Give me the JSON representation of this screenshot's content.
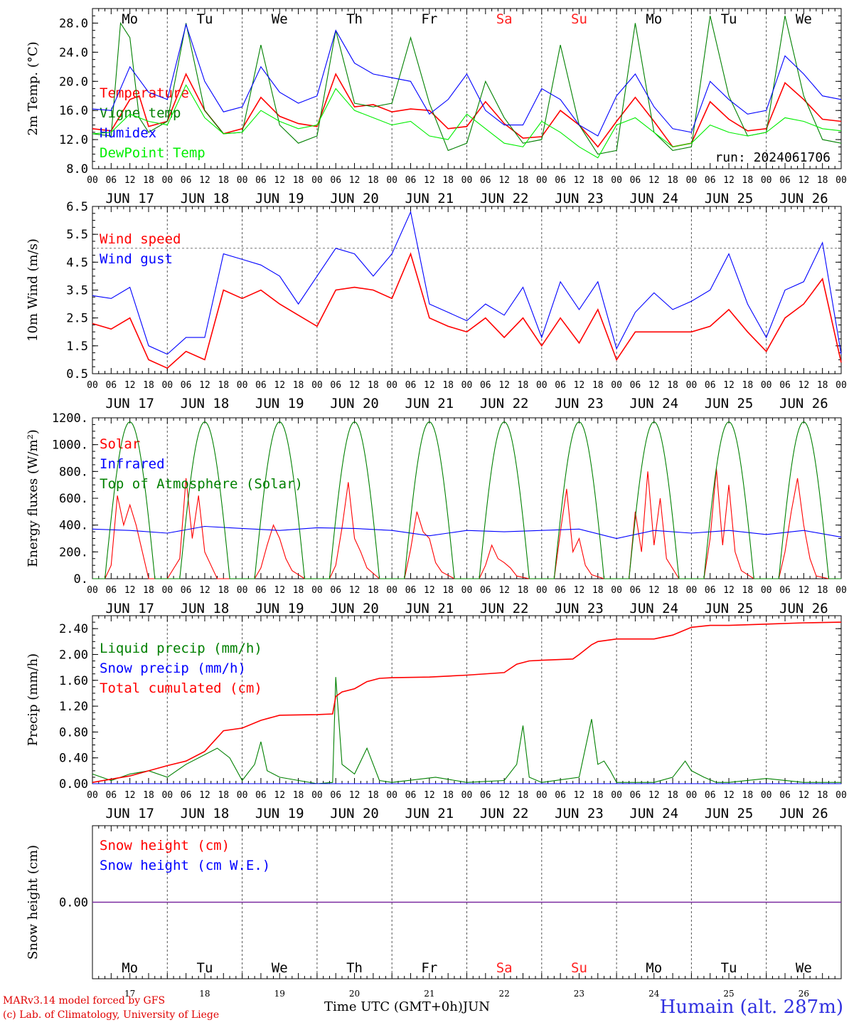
{
  "days": [
    "JUN 17",
    "JUN 18",
    "JUN 19",
    "JUN 20",
    "JUN 21",
    "JUN 22",
    "JUN 23",
    "JUN 24",
    "JUN 25",
    "JUN 26"
  ],
  "hour_ticks": [
    "00",
    "06",
    "12",
    "18"
  ],
  "weekdays": [
    "Mo",
    "Tu",
    "We",
    "Th",
    "Fr",
    "Sa",
    "Su",
    "Mo",
    "Tu",
    "We"
  ],
  "day_numbers": [
    "17",
    "18",
    "19",
    "20",
    "21",
    "22",
    "23",
    "24",
    "25",
    "26"
  ],
  "weekend_color": "#ff2020",
  "footer": {
    "credit_line1": "MARv3.14 model forced by GFS",
    "credit_line2": "(c) Lab. of Climatology, University of Liege",
    "time_axis": "Time UTC (GMT+0h)",
    "month": "JUN",
    "station": "Humain (alt. 287m)"
  },
  "chart_data": [
    {
      "type": "line",
      "ylabel": "2m Temp. (°C)",
      "ylim": [
        8,
        30
      ],
      "yticks": [
        "8.0",
        "12.0",
        "16.0",
        "20.0",
        "24.0",
        "28.0"
      ],
      "annotation": "run: 2024061706",
      "series": [
        {
          "name": "Temperature",
          "color": "#ff0000",
          "x": [
            0,
            6,
            12,
            15,
            18,
            24,
            30,
            36,
            42,
            48,
            54,
            60,
            66,
            72,
            78,
            84,
            90,
            96,
            102,
            108,
            114,
            120,
            126,
            132,
            138,
            144,
            150,
            156,
            162,
            168,
            174,
            180,
            186,
            192,
            198,
            204,
            210,
            216,
            222,
            228,
            234,
            240
          ],
          "y": [
            13.5,
            13.2,
            17.5,
            18.0,
            13.8,
            14.5,
            21.0,
            16.0,
            12.8,
            13.5,
            17.8,
            15.2,
            14.2,
            13.8,
            21.0,
            16.5,
            16.8,
            15.8,
            16.2,
            16.0,
            13.5,
            13.8,
            17.2,
            14.2,
            12.2,
            12.4,
            16.0,
            14.0,
            11.0,
            14.5,
            17.8,
            14.5,
            11.0,
            11.5,
            17.2,
            14.8,
            13.2,
            13.5,
            19.8,
            17.5,
            14.8,
            14.5
          ]
        },
        {
          "name": "Vigne temp",
          "color": "#008000",
          "x": [
            0,
            6,
            9,
            12,
            15,
            18,
            24,
            30,
            36,
            42,
            48,
            54,
            60,
            66,
            72,
            78,
            84,
            90,
            96,
            102,
            108,
            114,
            120,
            126,
            132,
            138,
            144,
            150,
            156,
            162,
            168,
            174,
            180,
            186,
            192,
            198,
            204,
            210,
            216,
            222,
            228,
            234,
            240
          ],
          "y": [
            12.8,
            12.5,
            28.0,
            26.0,
            15.0,
            13.0,
            14.5,
            28.0,
            16.0,
            12.8,
            13.0,
            25.0,
            14.0,
            11.5,
            12.5,
            27.0,
            17.0,
            16.5,
            17.0,
            26.0,
            17.0,
            10.5,
            11.5,
            20.0,
            15.0,
            11.5,
            12.0,
            25.0,
            14.0,
            10.0,
            10.5,
            28.0,
            13.0,
            10.5,
            11.0,
            29.0,
            18.0,
            12.5,
            13.0,
            29.0,
            18.0,
            12.0,
            11.5
          ]
        },
        {
          "name": "Humidex",
          "color": "#0000ff",
          "x": [
            0,
            6,
            12,
            18,
            24,
            30,
            36,
            42,
            48,
            54,
            60,
            66,
            72,
            78,
            84,
            90,
            96,
            102,
            108,
            114,
            120,
            126,
            132,
            138,
            144,
            150,
            156,
            162,
            168,
            174,
            180,
            186,
            192,
            198,
            204,
            210,
            216,
            222,
            228,
            234,
            240
          ],
          "y": [
            16.2,
            16.0,
            22.0,
            18.5,
            17.5,
            27.8,
            20.0,
            15.8,
            16.5,
            22.0,
            18.5,
            17.0,
            18.0,
            27.0,
            22.5,
            21.0,
            20.5,
            20.0,
            15.5,
            17.5,
            21.0,
            16.0,
            14.0,
            14.0,
            19.0,
            17.5,
            14.0,
            12.5,
            18.0,
            21.0,
            16.5,
            13.5,
            13.0,
            20.0,
            17.5,
            15.5,
            16.0,
            23.5,
            21.0,
            18.0,
            17.5
          ]
        },
        {
          "name": "DewPoint Temp",
          "color": "#00ee00",
          "x": [
            0,
            6,
            12,
            18,
            24,
            30,
            36,
            42,
            48,
            54,
            60,
            66,
            72,
            78,
            84,
            90,
            96,
            102,
            108,
            114,
            120,
            126,
            132,
            138,
            144,
            150,
            156,
            162,
            168,
            174,
            180,
            186,
            192,
            198,
            204,
            210,
            216,
            222,
            228,
            234,
            240
          ],
          "y": [
            12.8,
            13.0,
            15.5,
            14.5,
            14.0,
            19.5,
            15.0,
            12.8,
            13.0,
            16.0,
            14.5,
            13.5,
            14.0,
            19.0,
            16.0,
            15.0,
            14.0,
            14.5,
            12.5,
            12.0,
            15.5,
            13.5,
            11.5,
            11.0,
            14.5,
            13.0,
            11.0,
            9.5,
            14.0,
            15.0,
            13.0,
            11.0,
            11.5,
            14.0,
            13.0,
            12.5,
            13.0,
            15.0,
            14.5,
            13.5,
            13.2
          ]
        }
      ]
    },
    {
      "type": "line",
      "ylabel": "10m Wind (m/s)",
      "ylim": [
        0.5,
        6.5
      ],
      "yticks": [
        "0.5",
        "1.5",
        "2.5",
        "3.5",
        "4.5",
        "5.5",
        "6.5"
      ],
      "ref_line": 5.0,
      "series": [
        {
          "name": "Wind speed",
          "color": "#ff0000",
          "x": [
            0,
            6,
            12,
            18,
            24,
            30,
            36,
            42,
            48,
            54,
            60,
            66,
            72,
            78,
            84,
            90,
            96,
            102,
            108,
            114,
            120,
            126,
            132,
            138,
            144,
            150,
            156,
            162,
            168,
            174,
            180,
            186,
            192,
            198,
            204,
            210,
            216,
            222,
            228,
            234,
            240
          ],
          "y": [
            2.3,
            2.1,
            2.5,
            1.0,
            0.7,
            1.3,
            1.0,
            3.5,
            3.2,
            3.5,
            3.0,
            2.6,
            2.2,
            3.5,
            3.6,
            3.5,
            3.2,
            4.8,
            2.5,
            2.2,
            2.0,
            2.5,
            1.8,
            2.5,
            1.5,
            2.5,
            1.6,
            2.8,
            1.0,
            2.0,
            2.0,
            2.0,
            2.0,
            2.2,
            2.8,
            2.0,
            1.3,
            2.5,
            3.0,
            3.9,
            0.9
          ]
        },
        {
          "name": "Wind gust",
          "color": "#0000ff",
          "x": [
            0,
            6,
            12,
            18,
            24,
            30,
            36,
            42,
            48,
            54,
            60,
            66,
            72,
            78,
            84,
            90,
            96,
            102,
            108,
            114,
            120,
            126,
            132,
            138,
            144,
            150,
            156,
            162,
            168,
            174,
            180,
            186,
            192,
            198,
            204,
            210,
            216,
            222,
            228,
            234,
            240
          ],
          "y": [
            3.3,
            3.2,
            3.6,
            1.5,
            1.2,
            1.8,
            1.8,
            4.8,
            4.6,
            4.4,
            4.0,
            3.0,
            4.0,
            5.0,
            4.8,
            4.0,
            4.8,
            6.3,
            3.0,
            2.7,
            2.4,
            3.0,
            2.6,
            3.6,
            1.8,
            3.8,
            2.8,
            3.8,
            1.4,
            2.7,
            3.4,
            2.8,
            3.1,
            3.5,
            4.8,
            3.0,
            1.8,
            3.5,
            3.8,
            5.2,
            1.2
          ]
        }
      ]
    },
    {
      "type": "line",
      "ylabel": "Energy fluxes (W/m²)",
      "ylim": [
        0,
        1200
      ],
      "yticks": [
        "0.",
        "200.",
        "400.",
        "600.",
        "800.",
        "1000.",
        "1200."
      ],
      "series": [
        {
          "name": "Solar",
          "color": "#ff0000",
          "x": [
            0,
            4,
            6,
            8,
            10,
            12,
            14,
            16,
            18,
            20,
            24,
            28,
            30,
            32,
            34,
            36,
            38,
            40,
            44,
            48,
            52,
            54,
            56,
            58,
            60,
            62,
            64,
            68,
            72,
            76,
            78,
            80,
            82,
            84,
            86,
            88,
            92,
            96,
            100,
            102,
            104,
            106,
            108,
            110,
            112,
            116,
            120,
            124,
            126,
            128,
            130,
            132,
            134,
            136,
            140,
            144,
            148,
            150,
            152,
            154,
            156,
            158,
            160,
            164,
            168,
            172,
            174,
            176,
            178,
            180,
            182,
            184,
            188,
            192,
            196,
            198,
            200,
            202,
            204,
            206,
            208,
            212,
            216,
            220,
            222,
            224,
            226,
            228,
            230,
            232,
            236,
            240
          ],
          "y": [
            0,
            0,
            100,
            620,
            400,
            550,
            400,
            200,
            0,
            0,
            0,
            150,
            750,
            300,
            620,
            200,
            100,
            0,
            0,
            0,
            0,
            80,
            250,
            400,
            300,
            150,
            60,
            0,
            0,
            0,
            100,
            380,
            720,
            300,
            200,
            80,
            0,
            0,
            0,
            220,
            500,
            350,
            300,
            120,
            50,
            0,
            0,
            0,
            100,
            250,
            150,
            120,
            80,
            20,
            0,
            0,
            0,
            350,
            670,
            200,
            300,
            100,
            30,
            0,
            0,
            0,
            500,
            200,
            800,
            250,
            600,
            150,
            0,
            0,
            0,
            300,
            820,
            250,
            700,
            200,
            60,
            0,
            0,
            0,
            200,
            500,
            750,
            400,
            150,
            20,
            0,
            0
          ]
        },
        {
          "name": "Infrared",
          "color": "#0000ff",
          "x": [
            0,
            12,
            24,
            36,
            48,
            60,
            72,
            84,
            96,
            108,
            120,
            132,
            144,
            156,
            168,
            180,
            192,
            204,
            216,
            228,
            240
          ],
          "y": [
            370,
            360,
            340,
            390,
            375,
            360,
            380,
            375,
            360,
            320,
            360,
            350,
            360,
            370,
            300,
            360,
            340,
            360,
            330,
            360,
            310
          ]
        },
        {
          "name": "Top of Atmosphere (Solar)",
          "color": "#008000",
          "x": [],
          "y": [],
          "peak": 1170,
          "day_start_hour": 4,
          "day_end_hour": 20
        }
      ]
    },
    {
      "type": "line",
      "ylabel": "Precip (mm/h)",
      "ylim": [
        0,
        2.6
      ],
      "yticks": [
        "0.00",
        "0.40",
        "0.80",
        "1.20",
        "1.60",
        "2.00",
        "2.40"
      ],
      "series": [
        {
          "name": "Liquid precip (mm/h)",
          "color": "#008000",
          "x": [
            0,
            6,
            12,
            18,
            24,
            30,
            36,
            40,
            44,
            48,
            52,
            54,
            56,
            60,
            72,
            77,
            78,
            80,
            84,
            88,
            92,
            96,
            110,
            120,
            132,
            136,
            138,
            140,
            144,
            156,
            160,
            162,
            164,
            166,
            168,
            180,
            186,
            190,
            192,
            196,
            200,
            204,
            216,
            228,
            240
          ],
          "y": [
            0.15,
            0.05,
            0.15,
            0.2,
            0.1,
            0.3,
            0.45,
            0.55,
            0.4,
            0.05,
            0.3,
            0.65,
            0.2,
            0.1,
            0,
            0.02,
            1.65,
            0.3,
            0.15,
            0.55,
            0.05,
            0.02,
            0.1,
            0.02,
            0.05,
            0.3,
            0.9,
            0.1,
            0.02,
            0.1,
            1.0,
            0.3,
            0.35,
            0.2,
            0.02,
            0.02,
            0.1,
            0.35,
            0.2,
            0.1,
            0.02,
            0.02,
            0.08,
            0.02,
            0.02
          ]
        },
        {
          "name": "Snow precip (mm/h)",
          "color": "#0000ff",
          "x": [
            0,
            240
          ],
          "y": [
            0,
            0
          ]
        },
        {
          "name": "Total cumulated (cm)",
          "color": "#ff0000",
          "x": [
            0,
            12,
            24,
            30,
            36,
            42,
            48,
            54,
            60,
            72,
            77,
            78,
            80,
            84,
            88,
            92,
            96,
            108,
            120,
            132,
            136,
            140,
            144,
            154,
            156,
            160,
            162,
            168,
            180,
            186,
            192,
            198,
            204,
            216,
            228,
            240
          ],
          "y": [
            0.02,
            0.12,
            0.28,
            0.35,
            0.5,
            0.82,
            0.86,
            0.98,
            1.06,
            1.07,
            1.08,
            1.35,
            1.42,
            1.47,
            1.58,
            1.63,
            1.64,
            1.65,
            1.68,
            1.72,
            1.85,
            1.9,
            1.91,
            1.93,
            2.0,
            2.15,
            2.2,
            2.24,
            2.24,
            2.3,
            2.42,
            2.45,
            2.45,
            2.47,
            2.49,
            2.5
          ]
        }
      ]
    },
    {
      "type": "line",
      "ylabel": "Snow height (cm)",
      "ylim": [
        -1,
        1
      ],
      "yticks": [
        "0.00"
      ],
      "series": [
        {
          "name": "Snow height (cm)",
          "color": "#ff0000",
          "x": [
            0,
            240
          ],
          "y": [
            0,
            0
          ]
        },
        {
          "name": "Snow height (cm W.E.)",
          "color": "#0000ff",
          "x": [
            0,
            240
          ],
          "y": [
            0,
            0
          ]
        }
      ]
    }
  ]
}
